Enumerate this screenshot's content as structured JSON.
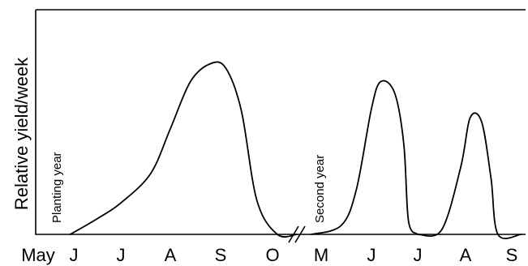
{
  "chart_data": {
    "type": "line",
    "title": "",
    "xlabel": "",
    "ylabel": "Relative yield/week",
    "grid": false,
    "legend": "none",
    "categories": [
      "May",
      "J",
      "J",
      "A",
      "S",
      "O",
      "M",
      "J",
      "J",
      "A",
      "S"
    ],
    "axis_break_after": "O",
    "annotations": [
      "Planting year",
      "Second year"
    ],
    "series": [
      {
        "segment": "first-year",
        "points": [
          {
            "x": 0.9,
            "y": 0.0
          },
          {
            "x": 1.5,
            "y": 0.07
          },
          {
            "x": 2.0,
            "y": 0.14
          },
          {
            "x": 2.6,
            "y": 0.27
          },
          {
            "x": 3.0,
            "y": 0.47
          },
          {
            "x": 3.4,
            "y": 0.68
          },
          {
            "x": 3.8,
            "y": 0.76
          },
          {
            "x": 4.1,
            "y": 0.74
          },
          {
            "x": 4.4,
            "y": 0.55
          },
          {
            "x": 4.7,
            "y": 0.15
          },
          {
            "x": 5.1,
            "y": 0.0
          },
          {
            "x": 5.5,
            "y": 0.0
          }
        ]
      },
      {
        "segment": "second-year-cut-1",
        "points": [
          {
            "x": 5.8,
            "y": 0.0
          },
          {
            "x": 6.4,
            "y": 0.04
          },
          {
            "x": 6.7,
            "y": 0.2
          },
          {
            "x": 7.0,
            "y": 0.56
          },
          {
            "x": 7.2,
            "y": 0.68
          },
          {
            "x": 7.5,
            "y": 0.63
          },
          {
            "x": 7.7,
            "y": 0.4
          },
          {
            "x": 7.8,
            "y": 0.06
          },
          {
            "x": 8.0,
            "y": 0.0
          }
        ]
      },
      {
        "segment": "second-year-cut-2",
        "points": [
          {
            "x": 8.0,
            "y": 0.0
          },
          {
            "x": 8.5,
            "y": 0.02
          },
          {
            "x": 8.9,
            "y": 0.3
          },
          {
            "x": 9.1,
            "y": 0.52
          },
          {
            "x": 9.35,
            "y": 0.5
          },
          {
            "x": 9.55,
            "y": 0.25
          },
          {
            "x": 9.7,
            "y": 0.0
          },
          {
            "x": 10.2,
            "y": 0.0
          }
        ]
      }
    ]
  }
}
